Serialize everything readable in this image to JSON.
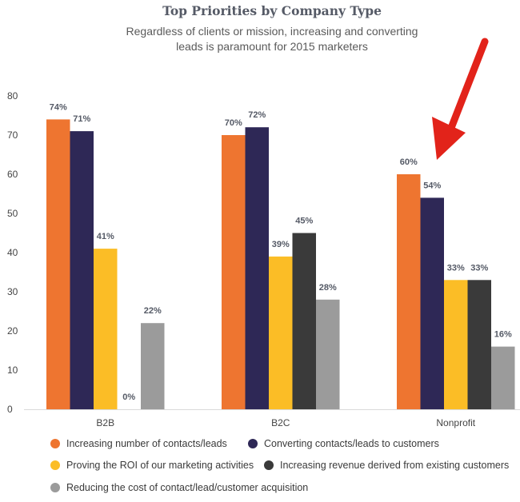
{
  "chart_data": {
    "type": "bar",
    "title": "Top Priorities by Company Type",
    "subtitle": [
      "Regardless of clients or mission, increasing and converting",
      "leads is paramount for 2015 marketers"
    ],
    "categories": [
      "B2B",
      "B2C",
      "Nonprofit"
    ],
    "ylim": [
      0,
      80
    ],
    "yticks": [
      0,
      10,
      20,
      30,
      40,
      50,
      60,
      70,
      80
    ],
    "grid": false,
    "legend_position": "bottom",
    "series": [
      {
        "name": "Increasing number of contacts/leads",
        "color": "#ee7530",
        "values": [
          74,
          70,
          60
        ],
        "labels": [
          "74%",
          "70%",
          "60%"
        ]
      },
      {
        "name": "Converting contacts/leads to customers",
        "color": "#2e2856",
        "values": [
          71,
          72,
          54
        ],
        "labels": [
          "71%",
          "72%",
          "54%"
        ]
      },
      {
        "name": "Proving the ROI of our marketing activities",
        "color": "#fbbd26",
        "values": [
          41,
          39,
          33
        ],
        "labels": [
          "41%",
          "39%",
          "33%"
        ]
      },
      {
        "name": "Increasing revenue derived from existing customers",
        "color": "#3a3a3a",
        "values": [
          0,
          45,
          33
        ],
        "labels": [
          "0%",
          "45%",
          "33%"
        ]
      },
      {
        "name": "Reducing the cost of contact/lead/customer acquisition",
        "color": "#9b9b9b",
        "values": [
          22,
          28,
          16
        ],
        "labels": [
          "22%",
          "28%",
          "16%"
        ]
      }
    ],
    "annotation": {
      "type": "arrow",
      "color": "#e2231a",
      "target": "Nonprofit"
    }
  }
}
